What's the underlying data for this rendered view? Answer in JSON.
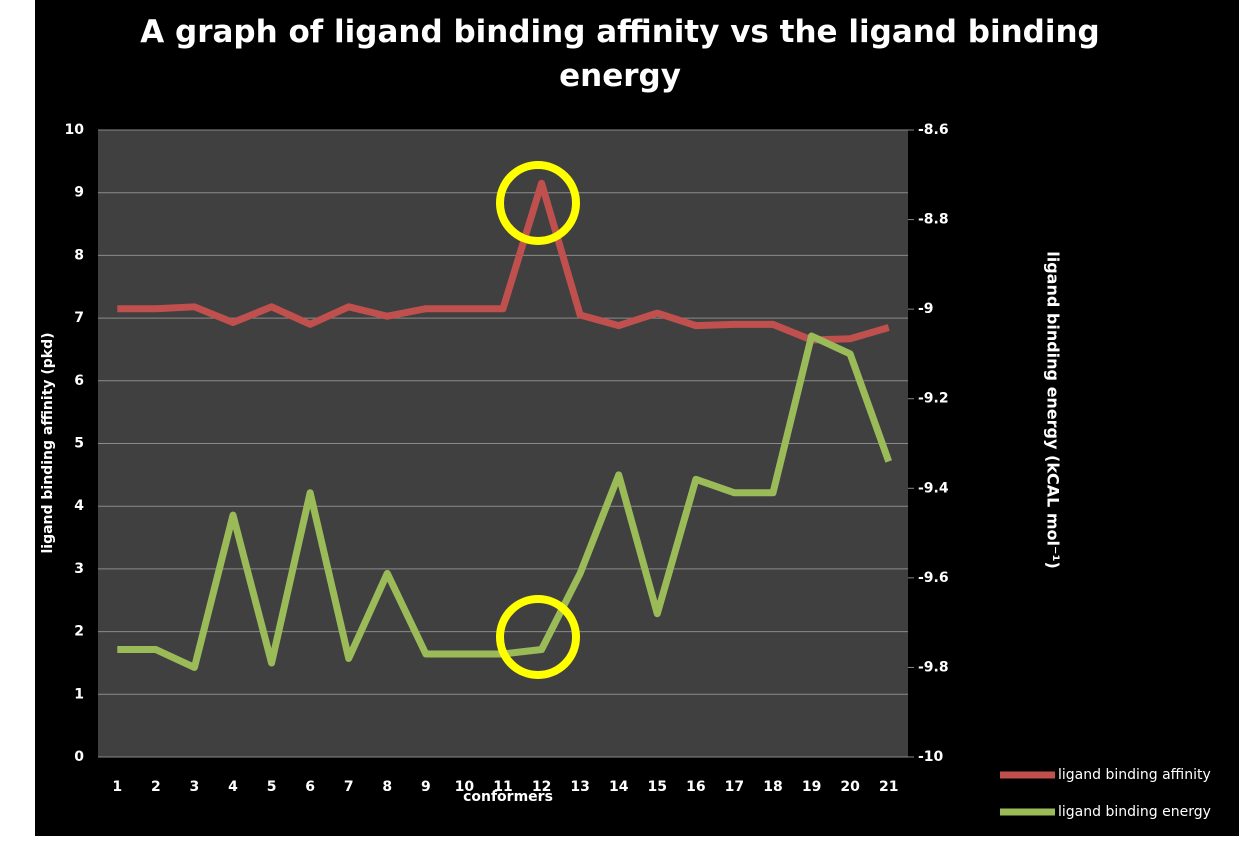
{
  "chart_data": {
    "type": "line",
    "title": "A graph of ligand binding affinity vs the ligand binding energy",
    "x_label": "conformers",
    "y_label": "ligand binding affinity (pkd)",
    "y2_label": "ligand binding energy (kCAL mol⁻¹)",
    "categories": [
      "1",
      "2",
      "3",
      "4",
      "5",
      "6",
      "7",
      "8",
      "9",
      "10",
      "11",
      "12",
      "13",
      "14",
      "15",
      "16",
      "17",
      "18",
      "19",
      "20",
      "21"
    ],
    "series": [
      {
        "name": "ligand binding affinity",
        "color": "#c0504d",
        "axis": "y",
        "values": [
          7.15,
          7.15,
          7.18,
          6.93,
          7.18,
          6.9,
          7.18,
          7.03,
          7.15,
          7.15,
          7.15,
          9.15,
          7.05,
          6.88,
          7.08,
          6.88,
          6.9,
          6.9,
          6.65,
          6.67,
          6.85
        ]
      },
      {
        "name": "ligand binding energy",
        "color": "#9bbb59",
        "axis": "y2",
        "values": [
          -9.76,
          -9.76,
          -9.8,
          -9.46,
          -9.79,
          -9.41,
          -9.78,
          -9.59,
          -9.77,
          -9.77,
          -9.77,
          -9.76,
          -9.59,
          -9.37,
          -9.68,
          -9.38,
          -9.41,
          -9.41,
          -9.06,
          -9.1,
          -9.34
        ]
      }
    ],
    "ylim": [
      0,
      10
    ],
    "yticks": [
      0,
      1,
      2,
      3,
      4,
      5,
      6,
      7,
      8,
      9,
      10
    ],
    "y2lim": [
      -10,
      -8.6
    ],
    "y2ticks": [
      -10,
      -9.8,
      -9.6,
      -9.4,
      -9.2,
      -9,
      -8.8,
      -8.6
    ],
    "grid": true
  }
}
